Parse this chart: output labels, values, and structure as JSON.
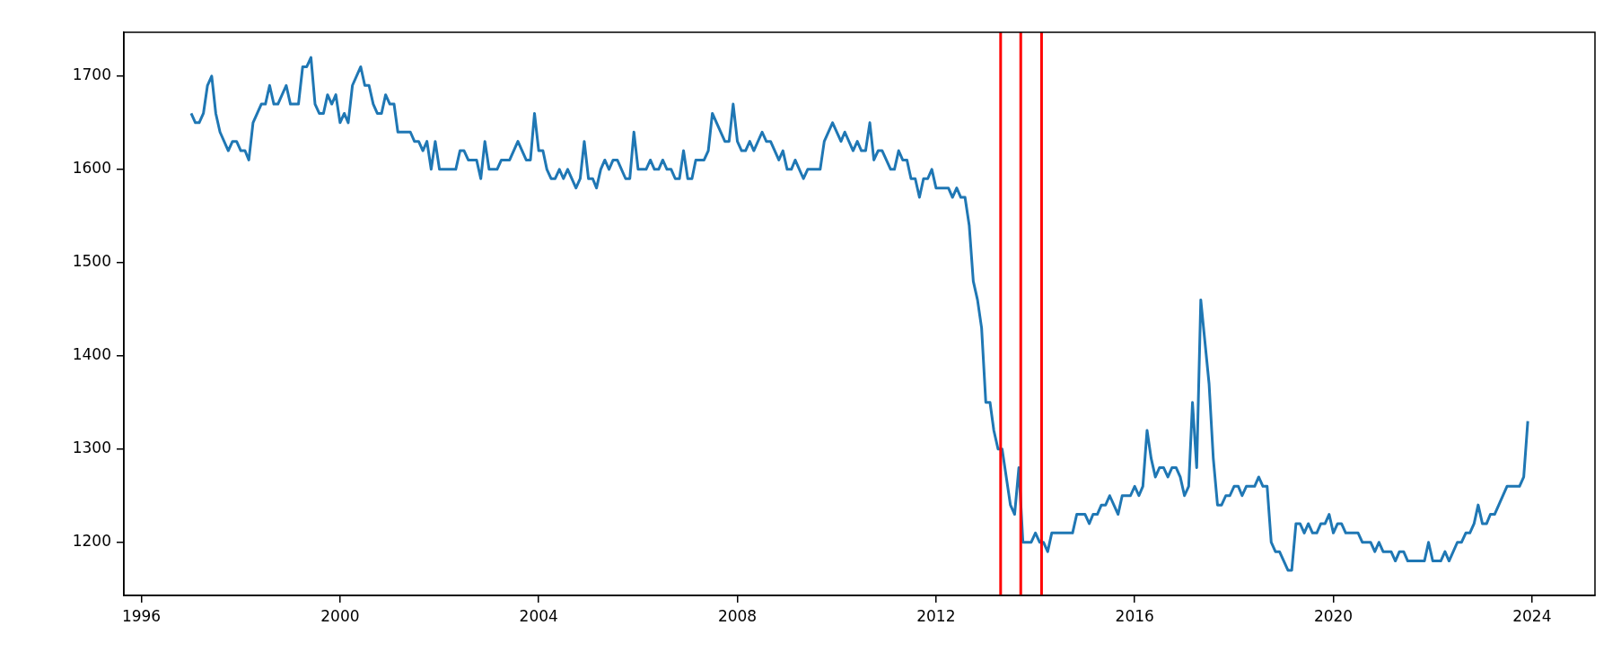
{
  "chart_data": {
    "type": "line",
    "x": [
      "1997-01",
      "1997-02",
      "1997-03",
      "1997-04",
      "1997-05",
      "1997-06",
      "1997-07",
      "1997-08",
      "1997-10",
      "1997-11",
      "1997-12",
      "1998-01",
      "1998-02",
      "1998-03",
      "1998-04",
      "1998-06",
      "1998-07",
      "1998-08",
      "1998-09",
      "1998-10",
      "1998-12",
      "1999-01",
      "1999-03",
      "1999-04",
      "1999-05",
      "1999-06",
      "1999-07",
      "1999-08",
      "1999-09",
      "1999-10",
      "1999-11",
      "1999-12",
      "2000-01",
      "2000-02",
      "2000-03",
      "2000-04",
      "2000-06",
      "2000-07",
      "2000-08",
      "2000-09",
      "2000-10",
      "2000-11",
      "2000-12",
      "2001-01",
      "2001-02",
      "2001-03",
      "2001-06",
      "2001-07",
      "2001-08",
      "2001-09",
      "2001-10",
      "2001-11",
      "2001-12",
      "2002-01",
      "2002-05",
      "2002-06",
      "2002-07",
      "2002-08",
      "2002-10",
      "2002-11",
      "2002-12",
      "2003-01",
      "2003-03",
      "2003-04",
      "2003-06",
      "2003-08",
      "2003-10",
      "2003-11",
      "2003-12",
      "2004-01",
      "2004-02",
      "2004-03",
      "2004-04",
      "2004-05",
      "2004-06",
      "2004-07",
      "2004-08",
      "2004-10",
      "2004-11",
      "2004-12",
      "2005-01",
      "2005-02",
      "2005-03",
      "2005-04",
      "2005-05",
      "2005-06",
      "2005-07",
      "2005-08",
      "2005-10",
      "2005-11",
      "2005-12",
      "2006-01",
      "2006-03",
      "2006-04",
      "2006-05",
      "2006-06",
      "2006-07",
      "2006-08",
      "2006-09",
      "2006-10",
      "2006-11",
      "2006-12",
      "2007-01",
      "2007-02",
      "2007-03",
      "2007-05",
      "2007-06",
      "2007-07",
      "2007-10",
      "2007-11",
      "2007-12",
      "2008-01",
      "2008-02",
      "2008-03",
      "2008-04",
      "2008-05",
      "2008-07",
      "2008-08",
      "2008-09",
      "2008-11",
      "2008-12",
      "2009-01",
      "2009-02",
      "2009-03",
      "2009-05",
      "2009-06",
      "2009-09",
      "2009-10",
      "2009-12",
      "2010-02",
      "2010-03",
      "2010-05",
      "2010-06",
      "2010-07",
      "2010-08",
      "2010-09",
      "2010-10",
      "2010-11",
      "2010-12",
      "2011-02",
      "2011-03",
      "2011-04",
      "2011-05",
      "2011-06",
      "2011-07",
      "2011-08",
      "2011-09",
      "2011-10",
      "2011-11",
      "2011-12",
      "2012-01",
      "2012-04",
      "2012-05",
      "2012-06",
      "2012-07",
      "2012-08",
      "2012-09",
      "2012-10",
      "2012-11",
      "2012-12",
      "2013-01",
      "2013-02",
      "2013-03",
      "2013-04",
      "2013-05",
      "2013-07",
      "2013-08",
      "2013-09",
      "2013-10",
      "2013-12",
      "2014-01",
      "2014-02",
      "2014-03",
      "2014-04",
      "2014-05",
      "2014-10",
      "2014-11",
      "2015-01",
      "2015-02",
      "2015-03",
      "2015-04",
      "2015-05",
      "2015-06",
      "2015-07",
      "2015-09",
      "2015-10",
      "2015-12",
      "2016-01",
      "2016-02",
      "2016-03",
      "2016-04",
      "2016-05",
      "2016-06",
      "2016-07",
      "2016-08",
      "2016-09",
      "2016-10",
      "2016-11",
      "2016-12",
      "2017-01",
      "2017-02",
      "2017-03",
      "2017-04",
      "2017-05",
      "2017-07",
      "2017-08",
      "2017-09",
      "2017-10",
      "2017-11",
      "2017-12",
      "2018-01",
      "2018-02",
      "2018-03",
      "2018-04",
      "2018-06",
      "2018-07",
      "2018-08",
      "2018-09",
      "2018-10",
      "2018-11",
      "2018-12",
      "2019-02",
      "2019-03",
      "2019-04",
      "2019-05",
      "2019-06",
      "2019-07",
      "2019-08",
      "2019-09",
      "2019-10",
      "2019-11",
      "2019-12",
      "2020-01",
      "2020-02",
      "2020-03",
      "2020-04",
      "2020-07",
      "2020-08",
      "2020-10",
      "2020-11",
      "2020-12",
      "2021-01",
      "2021-03",
      "2021-04",
      "2021-05",
      "2021-06",
      "2021-07",
      "2021-11",
      "2021-12",
      "2022-01",
      "2022-03",
      "2022-04",
      "2022-05",
      "2022-07",
      "2022-08",
      "2022-09",
      "2022-10",
      "2022-11",
      "2022-12",
      "2023-01",
      "2023-02",
      "2023-03",
      "2023-04",
      "2023-07",
      "2023-10",
      "2023-11",
      "2023-12"
    ],
    "series": [
      {
        "color": "#1f77b4",
        "values": [
          1660,
          1650,
          1650,
          1660,
          1690,
          1700,
          1660,
          1640,
          1620,
          1630,
          1630,
          1620,
          1620,
          1610,
          1650,
          1670,
          1670,
          1690,
          1670,
          1670,
          1690,
          1670,
          1670,
          1710,
          1710,
          1720,
          1670,
          1660,
          1660,
          1680,
          1670,
          1680,
          1650,
          1660,
          1650,
          1690,
          1710,
          1690,
          1690,
          1670,
          1660,
          1660,
          1680,
          1670,
          1670,
          1640,
          1640,
          1630,
          1630,
          1620,
          1630,
          1600,
          1630,
          1600,
          1600,
          1620,
          1620,
          1610,
          1610,
          1590,
          1630,
          1600,
          1600,
          1610,
          1610,
          1630,
          1610,
          1610,
          1660,
          1620,
          1620,
          1600,
          1590,
          1590,
          1600,
          1590,
          1600,
          1580,
          1590,
          1630,
          1590,
          1590,
          1580,
          1600,
          1610,
          1600,
          1610,
          1610,
          1590,
          1590,
          1640,
          1600,
          1600,
          1610,
          1600,
          1600,
          1610,
          1600,
          1600,
          1590,
          1590,
          1620,
          1590,
          1590,
          1610,
          1610,
          1620,
          1660,
          1630,
          1630,
          1670,
          1630,
          1620,
          1620,
          1630,
          1620,
          1640,
          1630,
          1630,
          1610,
          1620,
          1600,
          1600,
          1610,
          1590,
          1600,
          1600,
          1630,
          1650,
          1630,
          1640,
          1620,
          1630,
          1620,
          1620,
          1650,
          1610,
          1620,
          1620,
          1600,
          1600,
          1620,
          1610,
          1610,
          1590,
          1590,
          1570,
          1590,
          1590,
          1600,
          1580,
          1580,
          1570,
          1580,
          1570,
          1570,
          1540,
          1480,
          1460,
          1430,
          1350,
          1350,
          1320,
          1300,
          1300,
          1240,
          1230,
          1280,
          1200,
          1200,
          1210,
          1200,
          1200,
          1190,
          1210,
          1210,
          1230,
          1230,
          1220,
          1230,
          1230,
          1240,
          1240,
          1250,
          1230,
          1250,
          1250,
          1260,
          1250,
          1260,
          1320,
          1290,
          1270,
          1280,
          1280,
          1270,
          1280,
          1280,
          1270,
          1250,
          1260,
          1350,
          1280,
          1460,
          1370,
          1290,
          1240,
          1240,
          1250,
          1250,
          1260,
          1260,
          1250,
          1260,
          1260,
          1270,
          1260,
          1260,
          1200,
          1190,
          1190,
          1170,
          1170,
          1220,
          1220,
          1210,
          1220,
          1210,
          1210,
          1220,
          1220,
          1230,
          1210,
          1220,
          1220,
          1210,
          1210,
          1200,
          1200,
          1190,
          1200,
          1190,
          1190,
          1180,
          1190,
          1190,
          1180,
          1180,
          1200,
          1180,
          1180,
          1190,
          1180,
          1200,
          1200,
          1210,
          1210,
          1220,
          1240,
          1220,
          1220,
          1230,
          1230,
          1260,
          1260,
          1270,
          1330
        ]
      }
    ],
    "xlim": [
      "1995-08-25",
      "2025-04-08"
    ],
    "xticks": [
      "1996",
      "2000",
      "2004",
      "2008",
      "2012",
      "2016",
      "2020",
      "2024"
    ],
    "ylim": [
      1143,
      1747
    ],
    "yticks": [
      1200,
      1300,
      1400,
      1500,
      1600,
      1700
    ],
    "ref_lines": [
      {
        "axis": "x",
        "value": "2013-04-20",
        "color": "#ff0000"
      },
      {
        "axis": "x",
        "value": "2013-09-15",
        "color": "#ff0000"
      },
      {
        "axis": "x",
        "value": "2014-02-15",
        "color": "#ff0000"
      }
    ],
    "grid": false,
    "legend": false,
    "marker": "none",
    "line_style": "solid"
  }
}
